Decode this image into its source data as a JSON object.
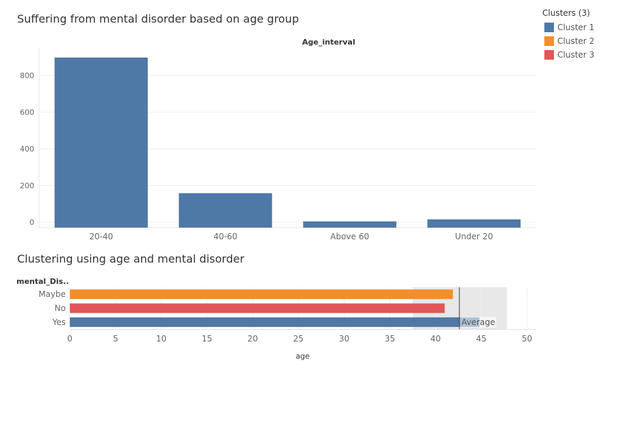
{
  "charts": {
    "top_title": "Suffering from mental disorder based on age group",
    "bottom_title": "Clustering using age and mental disorder"
  },
  "legend": {
    "title": "Clusters (3)",
    "items": [
      {
        "label": "Cluster 1",
        "color": "#4e79a7"
      },
      {
        "label": "Cluster 2",
        "color": "#f28e2b"
      },
      {
        "label": "Cluster 3",
        "color": "#e15759"
      }
    ]
  },
  "chart_data": [
    {
      "type": "bar",
      "title": "Suffering from mental disorder based on age group",
      "xlabel": "Age_interval",
      "ylabel": "",
      "categories": [
        "20-40",
        "40-60",
        "Above 60",
        "Under 20"
      ],
      "values": [
        898,
        158,
        4,
        15
      ],
      "ylim": [
        -30,
        950
      ],
      "yticks": [
        0,
        200,
        400,
        600,
        800
      ],
      "color": "#4e79a7",
      "grid": true
    },
    {
      "type": "bar",
      "orientation": "horizontal",
      "title": "Clustering using age and mental disorder",
      "xlabel": "age",
      "ylabel": "mental_Dis..",
      "categories": [
        "Maybe",
        "No",
        "Yes"
      ],
      "values": [
        41.9,
        41.0,
        44.8
      ],
      "colors": [
        "#f28e2b",
        "#e15759",
        "#4e79a7"
      ],
      "xlim": [
        0,
        51
      ],
      "xticks": [
        0,
        5,
        10,
        15,
        20,
        25,
        30,
        35,
        40,
        45,
        50
      ],
      "reference_line": {
        "label": "Average",
        "value": 42.6
      },
      "reference_band": [
        37.5,
        47.8
      ],
      "grid": true
    }
  ]
}
